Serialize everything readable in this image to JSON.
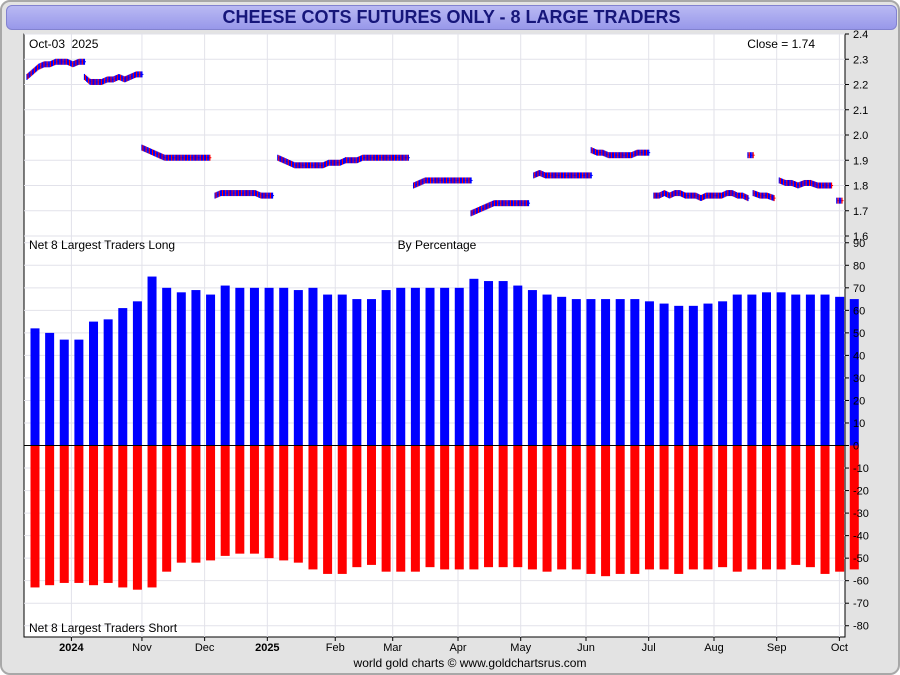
{
  "title": "CHEESE COTS FUTURES ONLY - 8 LARGE TRADERS",
  "footer": "world gold charts © www.goldchartsrus.com",
  "colors": {
    "long": "#0000ff",
    "short": "#ff0000",
    "title_text": "#16167a",
    "title_bg": "#a9a9ef"
  },
  "chart_data": [
    {
      "type": "line",
      "title": "Price",
      "date_label": "Oct-03  2025",
      "close_label": "Close = 1.74",
      "ylim": [
        1.6,
        2.4
      ],
      "yticks": [
        "1.6",
        "1.7",
        "1.8",
        "1.9",
        "2.0",
        "2.1",
        "2.2",
        "2.3",
        "2.4"
      ],
      "grid": true,
      "segments": [
        {
          "x_start": 0,
          "x_end": 11,
          "values": [
            2.23,
            2.25,
            2.27,
            2.28,
            2.28,
            2.29,
            2.29,
            2.29,
            2.28,
            2.29,
            2.29
          ]
        },
        {
          "x_start": 11,
          "x_end": 22,
          "values": [
            2.23,
            2.21,
            2.21,
            2.21,
            2.22,
            2.22,
            2.23,
            2.22,
            2.23,
            2.24,
            2.24
          ]
        },
        {
          "x_start": 22,
          "x_end": 35,
          "values": [
            1.95,
            1.94,
            1.93,
            1.92,
            1.91,
            1.91,
            1.91,
            1.91,
            1.91,
            1.91,
            1.91,
            1.91,
            1.91
          ]
        },
        {
          "x_start": 36,
          "x_end": 47,
          "values": [
            1.76,
            1.77,
            1.77,
            1.77,
            1.77,
            1.77,
            1.77,
            1.77,
            1.76,
            1.76,
            1.76
          ]
        },
        {
          "x_start": 48,
          "x_end": 61,
          "values": [
            1.91,
            1.9,
            1.89,
            1.88,
            1.88,
            1.88,
            1.88,
            1.88,
            1.88,
            1.89,
            1.89,
            1.89,
            1.9
          ]
        },
        {
          "x_start": 61,
          "x_end": 73,
          "values": [
            1.9,
            1.9,
            1.9,
            1.91,
            1.91,
            1.91,
            1.91,
            1.91,
            1.91,
            1.91,
            1.91,
            1.91
          ]
        },
        {
          "x_start": 74,
          "x_end": 85,
          "values": [
            1.8,
            1.81,
            1.82,
            1.82,
            1.82,
            1.82,
            1.82,
            1.82,
            1.82,
            1.82,
            1.82
          ]
        },
        {
          "x_start": 85,
          "x_end": 96,
          "values": [
            1.69,
            1.7,
            1.71,
            1.72,
            1.73,
            1.73,
            1.73,
            1.73,
            1.73,
            1.73,
            1.73
          ]
        },
        {
          "x_start": 97,
          "x_end": 108,
          "values": [
            1.84,
            1.85,
            1.84,
            1.84,
            1.84,
            1.84,
            1.84,
            1.84,
            1.84,
            1.84,
            1.84
          ]
        },
        {
          "x_start": 108,
          "x_end": 119,
          "values": [
            1.94,
            1.93,
            1.93,
            1.92,
            1.92,
            1.92,
            1.92,
            1.92,
            1.93,
            1.93,
            1.93
          ]
        },
        {
          "x_start": 120,
          "x_end": 138,
          "values": [
            1.76,
            1.76,
            1.77,
            1.76,
            1.77,
            1.77,
            1.76,
            1.76,
            1.76,
            1.75,
            1.76,
            1.76,
            1.76,
            1.76,
            1.77,
            1.77,
            1.76,
            1.76,
            1.75
          ]
        },
        {
          "x_start": 138,
          "x_end": 139,
          "values": [
            1.92
          ]
        },
        {
          "x_start": 139,
          "x_end": 143,
          "values": [
            1.77,
            1.76,
            1.76,
            1.75
          ]
        },
        {
          "x_start": 144,
          "x_end": 150,
          "values": [
            1.82,
            1.81,
            1.81,
            1.8,
            1.81,
            1.81
          ]
        },
        {
          "x_start": 150,
          "x_end": 154,
          "values": [
            1.81,
            1.8,
            1.8,
            1.8
          ]
        },
        {
          "x_start": 155,
          "x_end": 156,
          "values": [
            1.74
          ]
        }
      ],
      "x_domain": [
        0,
        156
      ]
    },
    {
      "type": "bar",
      "title": "By Percentage",
      "long_label": "Net 8 Largest Traders Long",
      "short_label": "Net 8 Largest Traders Short",
      "ylim": [
        -85,
        93
      ],
      "yticks": [
        "90",
        "80",
        "70",
        "60",
        "50",
        "40",
        "30",
        "20",
        "10",
        "0",
        "-10",
        "-20",
        "-30",
        "-40",
        "-50",
        "-60",
        "-70",
        "-80"
      ],
      "grid": true,
      "series": [
        {
          "values": [
            52,
            50,
            47,
            47,
            55,
            56,
            61,
            64,
            75,
            70,
            68,
            69,
            67,
            71,
            70,
            70,
            70,
            70,
            69,
            70,
            67,
            67,
            65,
            65,
            69,
            70,
            70,
            70,
            70,
            70,
            74,
            73,
            73,
            71,
            69,
            67,
            66,
            65,
            65,
            65,
            65,
            65,
            64,
            63,
            62,
            62,
            63,
            64,
            67,
            67,
            68,
            68,
            67,
            67,
            67,
            66,
            65
          ]
        },
        {
          "values": [
            -63,
            -62,
            -61,
            -61,
            -62,
            -61,
            -63,
            -64,
            -63,
            -56,
            -52,
            -52,
            -51,
            -49,
            -48,
            -48,
            -50,
            -51,
            -52,
            -55,
            -57,
            -57,
            -54,
            -53,
            -56,
            -56,
            -56,
            -54,
            -55,
            -55,
            -55,
            -54,
            -54,
            -54,
            -55,
            -56,
            -55,
            -55,
            -57,
            -58,
            -57,
            -57,
            -55,
            -55,
            -57,
            -55,
            -55,
            -54,
            -56,
            -55,
            -55,
            -55,
            -53,
            -54,
            -57,
            -56,
            -55
          ]
        }
      ]
    }
  ],
  "x_axis": {
    "ticks": [
      {
        "label": "2024",
        "x": 8.5,
        "bold": true
      },
      {
        "label": "Nov",
        "x": 22,
        "bold": false
      },
      {
        "label": "Dec",
        "x": 34,
        "bold": false
      },
      {
        "label": "2025",
        "x": 46,
        "bold": true
      },
      {
        "label": "Feb",
        "x": 59,
        "bold": false
      },
      {
        "label": "Mar",
        "x": 70,
        "bold": false
      },
      {
        "label": "Apr",
        "x": 82.5,
        "bold": false
      },
      {
        "label": "May",
        "x": 94.5,
        "bold": false
      },
      {
        "label": "Jun",
        "x": 107,
        "bold": false
      },
      {
        "label": "Jul",
        "x": 119,
        "bold": false
      },
      {
        "label": "Aug",
        "x": 131.5,
        "bold": false
      },
      {
        "label": "Sep",
        "x": 143.5,
        "bold": false
      },
      {
        "label": "Oct",
        "x": 155.5,
        "bold": false
      }
    ]
  }
}
